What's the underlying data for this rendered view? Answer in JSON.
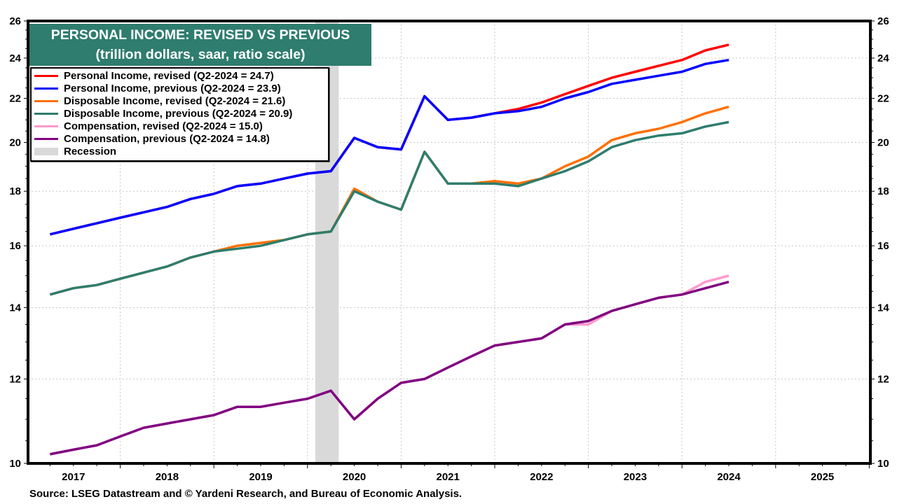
{
  "chart_data": {
    "type": "line",
    "title": "PERSONAL INCOME: REVISED VS PREVIOUS",
    "subtitle": "(trillion dollars, saar, ratio scale)",
    "xlabel": "",
    "ylabel": "",
    "y_scale": "log",
    "ylim": [
      10,
      26
    ],
    "y_ticks": [
      10,
      12,
      14,
      16,
      18,
      20,
      22,
      24,
      26
    ],
    "y_tick_labels": [
      "10",
      "12",
      "14",
      "16",
      "18",
      "20",
      "22",
      "24",
      "26"
    ],
    "x_range": [
      "2017-01",
      "2025-12"
    ],
    "x_tick_labels": [
      "2017",
      "2018",
      "2019",
      "2020",
      "2021",
      "2022",
      "2023",
      "2024",
      "2025"
    ],
    "grid": true,
    "legend_position": "top-left",
    "x": [
      "Q1-2017",
      "Q2-2017",
      "Q3-2017",
      "Q4-2017",
      "Q1-2018",
      "Q2-2018",
      "Q3-2018",
      "Q4-2018",
      "Q1-2019",
      "Q2-2019",
      "Q3-2019",
      "Q4-2019",
      "Q1-2020",
      "Q2-2020",
      "Q3-2020",
      "Q4-2020",
      "Q1-2021",
      "Q2-2021",
      "Q3-2021",
      "Q4-2021",
      "Q1-2022",
      "Q2-2022",
      "Q3-2022",
      "Q4-2022",
      "Q1-2023",
      "Q2-2023",
      "Q3-2023",
      "Q4-2023",
      "Q1-2024",
      "Q2-2024"
    ],
    "series": [
      {
        "name": "Personal Income, revised (Q2-2024 = 24.7)",
        "color": "#ff0000",
        "values": [
          16.4,
          16.6,
          16.8,
          17.0,
          17.2,
          17.4,
          17.7,
          17.9,
          18.2,
          18.3,
          18.5,
          18.7,
          18.8,
          20.2,
          19.8,
          19.7,
          22.1,
          21.0,
          21.1,
          21.3,
          21.5,
          21.8,
          22.2,
          22.6,
          23.0,
          23.3,
          23.6,
          23.9,
          24.4,
          24.7
        ]
      },
      {
        "name": "Personal Income, previous (Q2-2024 = 23.9)",
        "color": "#0000ff",
        "values": [
          16.4,
          16.6,
          16.8,
          17.0,
          17.2,
          17.4,
          17.7,
          17.9,
          18.2,
          18.3,
          18.5,
          18.7,
          18.8,
          20.2,
          19.8,
          19.7,
          22.1,
          21.0,
          21.1,
          21.3,
          21.4,
          21.6,
          22.0,
          22.3,
          22.7,
          22.9,
          23.1,
          23.3,
          23.7,
          23.9
        ]
      },
      {
        "name": "Disposable Income, revised (Q2-2024 = 21.6)",
        "color": "#ff7000",
        "values": [
          14.4,
          14.6,
          14.7,
          14.9,
          15.1,
          15.3,
          15.6,
          15.8,
          16.0,
          16.1,
          16.2,
          16.4,
          16.5,
          18.1,
          17.6,
          17.3,
          19.6,
          18.3,
          18.3,
          18.4,
          18.3,
          18.5,
          19.0,
          19.4,
          20.1,
          20.4,
          20.6,
          20.9,
          21.3,
          21.6
        ]
      },
      {
        "name": "Disposable Income, previous (Q2-2024 = 20.9)",
        "color": "#2e7d6e",
        "values": [
          14.4,
          14.6,
          14.7,
          14.9,
          15.1,
          15.3,
          15.6,
          15.8,
          15.9,
          16.0,
          16.2,
          16.4,
          16.5,
          18.0,
          17.6,
          17.3,
          19.6,
          18.3,
          18.3,
          18.3,
          18.2,
          18.5,
          18.8,
          19.2,
          19.8,
          20.1,
          20.3,
          20.4,
          20.7,
          20.9
        ]
      },
      {
        "name": "Compensation, revised (Q2-2024 = 15.0)",
        "color": "#ff99cc",
        "values": [
          10.2,
          10.3,
          10.4,
          10.6,
          10.8,
          10.9,
          11.0,
          11.1,
          11.3,
          11.3,
          11.4,
          11.5,
          11.7,
          11.0,
          11.5,
          11.9,
          12.0,
          12.3,
          12.6,
          12.9,
          13.0,
          13.1,
          13.5,
          13.5,
          13.9,
          14.1,
          14.3,
          14.4,
          14.8,
          15.0
        ]
      },
      {
        "name": "Compensation, previous (Q2-2024 = 14.8)",
        "color": "#800080",
        "values": [
          10.2,
          10.3,
          10.4,
          10.6,
          10.8,
          10.9,
          11.0,
          11.1,
          11.3,
          11.3,
          11.4,
          11.5,
          11.7,
          11.0,
          11.5,
          11.9,
          12.0,
          12.3,
          12.6,
          12.9,
          13.0,
          13.1,
          13.5,
          13.6,
          13.9,
          14.1,
          14.3,
          14.4,
          14.6,
          14.8
        ]
      }
    ],
    "recession": {
      "label": "Recession",
      "start": "2020-02",
      "end": "2020-04",
      "color": "#d9d9d9"
    },
    "source": "Source: LSEG Datastream and © Yardeni Research, and Bureau of Economic Analysis."
  }
}
